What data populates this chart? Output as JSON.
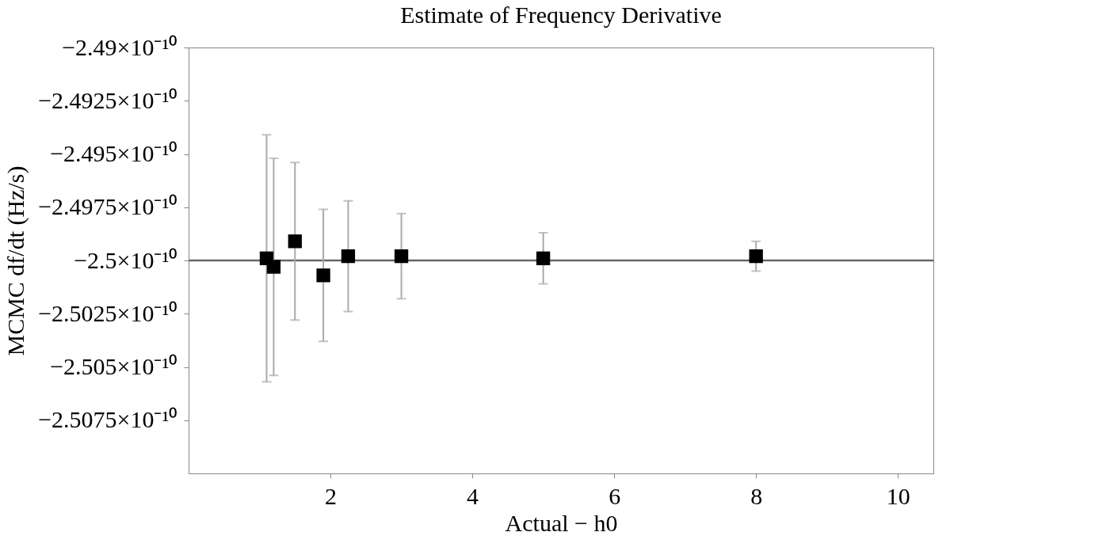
{
  "chart_data": {
    "type": "scatter",
    "title": "Estimate of Frequency Derivative",
    "xlabel": "Actual − h0",
    "ylabel": "MCMC df/dt (Hz/s)",
    "x": [
      1.1,
      1.2,
      1.5,
      1.9,
      2.25,
      3,
      5,
      8
    ],
    "series": [
      {
        "color": "#000000",
        "values": [
          -2.4999e-10,
          -2.5003e-10,
          -2.4991e-10,
          -2.5007e-10,
          -2.4998e-10,
          -2.4998e-10,
          -2.4999e-10,
          -2.4998e-10
        ],
        "errors": [
          5.8e-13,
          5.1e-13,
          3.7e-13,
          3.1e-13,
          2.6e-13,
          2e-13,
          1.2e-13,
          7e-14
        ]
      }
    ],
    "xlim": [
      0,
      10.5
    ],
    "xticks": [
      2,
      4,
      6,
      8,
      10
    ],
    "ylim": [
      -2.51e-10,
      -2.49e-10
    ],
    "yticks": [
      {
        "value": -2.49e-10,
        "label": "−2.49×10⁻¹⁰"
      },
      {
        "value": -2.4925e-10,
        "label": "−2.4925×10⁻¹⁰"
      },
      {
        "value": -2.495e-10,
        "label": "−2.495×10⁻¹⁰"
      },
      {
        "value": -2.4975e-10,
        "label": "−2.4975×10⁻¹⁰"
      },
      {
        "value": -2.5e-10,
        "label": "−2.5×10⁻¹⁰"
      },
      {
        "value": -2.5025e-10,
        "label": "−2.5025×10⁻¹⁰"
      },
      {
        "value": -2.505e-10,
        "label": "−2.505×10⁻¹⁰"
      },
      {
        "value": -2.5075e-10,
        "label": "−2.5075×10⁻¹⁰"
      }
    ],
    "ref_lines": [
      {
        "axis": "y",
        "value": -2.5e-10,
        "label": null,
        "color": "#666666"
      }
    ],
    "marker": "square"
  }
}
